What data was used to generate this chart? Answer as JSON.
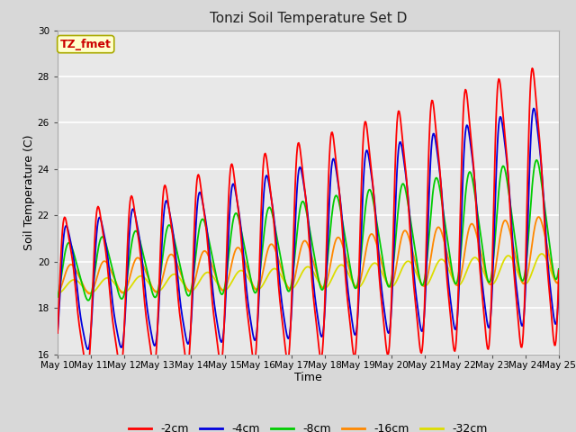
{
  "title": "Tonzi Soil Temperature Set D",
  "xlabel": "Time",
  "ylabel": "Soil Temperature (C)",
  "ylim": [
    16,
    30
  ],
  "x_tick_labels": [
    "May 10",
    "May 11",
    "May 12",
    "May 13",
    "May 14",
    "May 15",
    "May 16",
    "May 17",
    "May 18",
    "May 19",
    "May 20",
    "May 21",
    "May 22",
    "May 23",
    "May 24",
    "May 25"
  ],
  "annotation_text": "TZ_fmet",
  "annotation_bg": "#ffffcc",
  "annotation_fg": "#cc0000",
  "annotation_border": "#aaaa00",
  "series_colors": [
    "#ff0000",
    "#0000dd",
    "#00cc00",
    "#ff8800",
    "#dddd00"
  ],
  "series_labels": [
    "-2cm",
    "-4cm",
    "-8cm",
    "-16cm",
    "-32cm"
  ],
  "fig_facecolor": "#d8d8d8",
  "plot_facecolor": "#e8e8e8",
  "grid_color": "#ffffff",
  "n_points": 720,
  "n_days": 15
}
